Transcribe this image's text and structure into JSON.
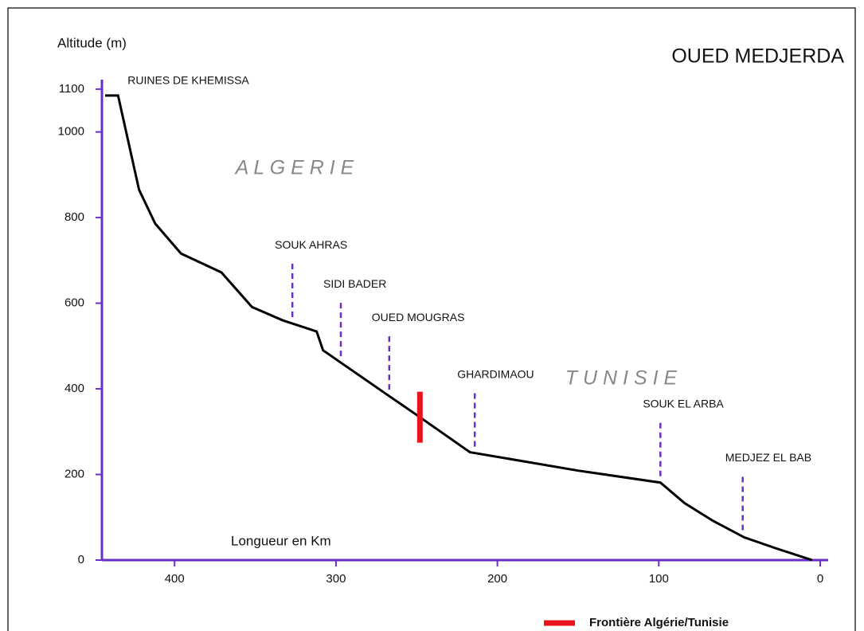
{
  "chart_data": {
    "type": "line",
    "title": "OUED MEDJERDA",
    "y_label": "Altitude (m)",
    "x_label": "Longueur en Km",
    "regions": [
      "A L G E R I E",
      "T U N I S I E"
    ],
    "x": [
      443,
      435,
      422,
      412,
      396,
      371,
      352,
      333,
      312,
      308,
      267,
      250,
      217,
      150,
      99,
      84,
      67,
      47,
      27,
      5
    ],
    "series": [
      {
        "name": "Frontière Algérie/Tunisie",
        "color": "#000000",
        "values": [
          1085,
          1085,
          865,
          786,
          716,
          672,
          591,
          560,
          534,
          490,
          383,
          339,
          252,
          209,
          181,
          133,
          93,
          53,
          27,
          0
        ]
      }
    ],
    "stations": [
      {
        "label": "RUINES DE KHEMISSA",
        "x": 435
      },
      {
        "label": "SOUK AHRAS",
        "x": 327
      },
      {
        "label": "SIDI BADER",
        "x": 297
      },
      {
        "label": "OUED MOUGRAS",
        "x": 267
      },
      {
        "label": "GHARDIMAOU",
        "x": 214
      },
      {
        "label": "SOUK EL ARBA",
        "x": 99
      },
      {
        "label": "MEDJEZ EL BAB",
        "x": 48
      }
    ],
    "frontier": {
      "x": 248,
      "color": "#e8141b"
    },
    "axis_color": "#6a2fc9",
    "xlim": [
      445,
      0
    ],
    "xticks": [
      400,
      300,
      200,
      100,
      0
    ],
    "ylim": [
      0,
      1150
    ],
    "yticks": [
      0,
      200,
      400,
      600,
      800,
      1000,
      1100
    ]
  }
}
